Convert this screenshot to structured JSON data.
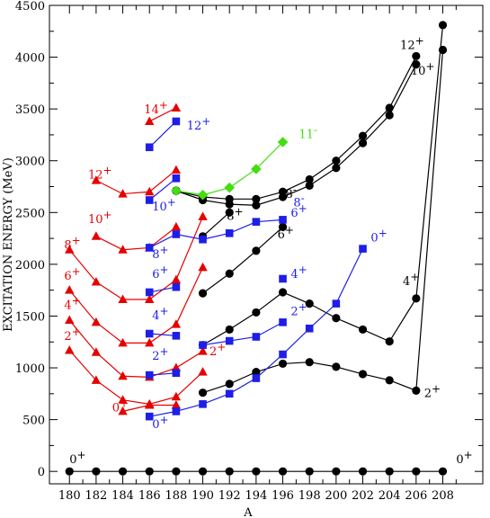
{
  "chart_data": {
    "type": "line",
    "xlabel": "A",
    "ylabel": "EXCITATION ENERGY (MeV)",
    "xlim": [
      178.5,
      211
    ],
    "ylim": [
      -120,
      4500
    ],
    "xticks": [
      180,
      182,
      184,
      186,
      188,
      190,
      192,
      194,
      196,
      198,
      200,
      202,
      204,
      206,
      208
    ],
    "yticks": [
      0,
      500,
      1000,
      1500,
      2000,
      2500,
      3000,
      3500,
      4000,
      4500
    ],
    "grid": false,
    "colors": {
      "black": "#000000",
      "red": "#e60000",
      "blue": "#1e1ee6",
      "green": "#44dd11"
    },
    "series": [
      {
        "color": "black",
        "marker": "circle",
        "x": [
          180,
          182,
          184,
          186,
          188,
          190,
          192,
          194,
          196,
          198,
          200,
          202,
          204,
          206,
          208
        ],
        "y": [
          0,
          0,
          0,
          0,
          0,
          0,
          0,
          0,
          0,
          0,
          0,
          0,
          0,
          0,
          0
        ]
      },
      {
        "color": "black",
        "marker": "circle",
        "x": [
          190,
          192,
          194,
          196,
          198,
          200,
          202,
          204,
          206,
          208
        ],
        "y": [
          760,
          845,
          960,
          1040,
          1055,
          1010,
          940,
          880,
          780,
          4070
        ]
      },
      {
        "color": "black",
        "marker": "circle",
        "x": [
          190,
          192,
          194,
          196,
          198,
          200,
          202,
          204,
          206,
          208
        ],
        "y": [
          1220,
          1370,
          1535,
          1730,
          1620,
          1480,
          1370,
          1255,
          1670,
          4310
        ]
      },
      {
        "color": "black",
        "marker": "circle",
        "x": [
          190,
          192,
          194,
          196
        ],
        "y": [
          1720,
          1910,
          2130,
          2360
        ]
      },
      {
        "color": "black",
        "marker": "circle",
        "x": [
          190,
          192
        ],
        "y": [
          2270,
          2500
        ]
      },
      {
        "color": "black",
        "marker": "circle",
        "x": [
          188,
          190,
          192,
          194,
          196,
          198,
          200,
          202,
          204,
          206
        ],
        "y": [
          2710,
          2620,
          2580,
          2570,
          2650,
          2760,
          2930,
          3170,
          3440,
          3930
        ]
      },
      {
        "color": "black",
        "marker": "circle",
        "x": [
          188,
          190,
          192,
          194,
          196,
          198,
          200,
          202,
          204,
          206
        ],
        "y": [
          2710,
          2650,
          2630,
          2630,
          2700,
          2820,
          3000,
          3240,
          3510,
          4010
        ]
      },
      {
        "color": "red",
        "marker": "triangle",
        "x": [
          180,
          182,
          184,
          186,
          188,
          190
        ],
        "y": [
          1170,
          880,
          690,
          650,
          720,
          960
        ]
      },
      {
        "color": "red",
        "marker": "triangle",
        "x": [
          180,
          182,
          184,
          186,
          188,
          190
        ],
        "y": [
          1460,
          1150,
          920,
          910,
          1000,
          1160
        ]
      },
      {
        "color": "red",
        "marker": "triangle",
        "x": [
          180,
          182,
          184,
          186,
          188,
          190
        ],
        "y": [
          1750,
          1440,
          1240,
          1240,
          1420,
          1970
        ]
      },
      {
        "color": "red",
        "marker": "triangle",
        "x": [
          180,
          182,
          184,
          186,
          188,
          190
        ],
        "y": [
          2140,
          1830,
          1660,
          1660,
          1850,
          2460
        ]
      },
      {
        "color": "red",
        "marker": "triangle",
        "x": [
          182,
          184,
          186,
          188
        ],
        "y": [
          2270,
          2140,
          2160,
          2360
        ]
      },
      {
        "color": "red",
        "marker": "triangle",
        "x": [
          182,
          184,
          186,
          188
        ],
        "y": [
          2810,
          2680,
          2700,
          2910
        ]
      },
      {
        "color": "red",
        "marker": "triangle",
        "x": [
          186,
          188
        ],
        "y": [
          3380,
          3510
        ]
      },
      {
        "color": "red",
        "marker": "triangle",
        "x": [
          184,
          186,
          188
        ],
        "y": [
          580,
          640,
          640
        ]
      },
      {
        "color": "blue",
        "marker": "square",
        "x": [
          186,
          188,
          190,
          192,
          194,
          196,
          198,
          200,
          202
        ],
        "y": [
          530,
          580,
          650,
          750,
          900,
          1130,
          1380,
          1620,
          2150
        ]
      },
      {
        "color": "blue",
        "marker": "square",
        "x": [
          186,
          188
        ],
        "y": [
          930,
          950
        ]
      },
      {
        "color": "blue",
        "marker": "square",
        "x": [
          186,
          188
        ],
        "y": [
          1330,
          1310
        ]
      },
      {
        "color": "blue",
        "marker": "square",
        "x": [
          186,
          188
        ],
        "y": [
          1730,
          1780
        ]
      },
      {
        "color": "blue",
        "marker": "square",
        "x": [
          186,
          188,
          190,
          192,
          194,
          196
        ],
        "y": [
          2160,
          2290,
          2240,
          2300,
          2410,
          2430
        ]
      },
      {
        "color": "blue",
        "marker": "square",
        "x": [
          186,
          188
        ],
        "y": [
          2620,
          2830
        ]
      },
      {
        "color": "blue",
        "marker": "square",
        "x": [
          186,
          188
        ],
        "y": [
          3130,
          3380
        ]
      },
      {
        "color": "blue",
        "marker": "square",
        "x": [
          190,
          192,
          194,
          196
        ],
        "y": [
          1220,
          1260,
          1300,
          1440
        ]
      },
      {
        "color": "blue",
        "marker": "square",
        "x": [
          196
        ],
        "y": [
          1860
        ]
      },
      {
        "color": "green",
        "marker": "diamond",
        "x": [
          188,
          190,
          192,
          194,
          196
        ],
        "y": [
          2710,
          2670,
          2740,
          2920,
          3180
        ]
      }
    ],
    "annotations": [
      {
        "text": "0+",
        "color": "black",
        "x": 180,
        "y": 80
      },
      {
        "text": "0+",
        "color": "black",
        "x": 209,
        "y": 80
      },
      {
        "text": "2+",
        "color": "black",
        "x": 206.6,
        "y": 720
      },
      {
        "text": "4+",
        "color": "black",
        "x": 205,
        "y": 1800
      },
      {
        "text": "6+",
        "color": "black",
        "x": 195.6,
        "y": 2250
      },
      {
        "text": "8+",
        "color": "black",
        "x": 191.8,
        "y": 2430
      },
      {
        "text": "8-",
        "color": "black",
        "x": 196.2,
        "y": 2640
      },
      {
        "text": "10+",
        "color": "black",
        "x": 205.6,
        "y": 3830
      },
      {
        "text": "12+",
        "color": "black",
        "x": 204.8,
        "y": 4080
      },
      {
        "text": "0+",
        "color": "red",
        "x": 183.2,
        "y": 580
      },
      {
        "text": "2+",
        "color": "red",
        "x": 179.6,
        "y": 1270
      },
      {
        "text": "4+",
        "color": "red",
        "x": 179.6,
        "y": 1570
      },
      {
        "text": "6+",
        "color": "red",
        "x": 179.6,
        "y": 1850
      },
      {
        "text": "8+",
        "color": "red",
        "x": 179.6,
        "y": 2150
      },
      {
        "text": "10+",
        "color": "red",
        "x": 181.4,
        "y": 2400
      },
      {
        "text": "12+",
        "color": "red",
        "x": 181.4,
        "y": 2830
      },
      {
        "text": "14+",
        "color": "red",
        "x": 185.6,
        "y": 3460
      },
      {
        "text": "2+",
        "color": "red",
        "x": 190.5,
        "y": 1120
      },
      {
        "text": "0+",
        "color": "blue",
        "x": 186.2,
        "y": 420
      },
      {
        "text": "2+",
        "color": "blue",
        "x": 186.2,
        "y": 1080
      },
      {
        "text": "4+",
        "color": "blue",
        "x": 186.2,
        "y": 1470
      },
      {
        "text": "6+",
        "color": "blue",
        "x": 186.2,
        "y": 1870
      },
      {
        "text": "8+",
        "color": "blue",
        "x": 186.2,
        "y": 2060
      },
      {
        "text": "10+",
        "color": "blue",
        "x": 186.2,
        "y": 2520
      },
      {
        "text": "12+",
        "color": "blue",
        "x": 188.8,
        "y": 3300
      },
      {
        "text": "2+",
        "color": "blue",
        "x": 196.6,
        "y": 1510
      },
      {
        "text": "4+",
        "color": "blue",
        "x": 196.6,
        "y": 1870
      },
      {
        "text": "6+",
        "color": "blue",
        "x": 196.6,
        "y": 2460
      },
      {
        "text": "8-",
        "color": "blue",
        "x": 196.8,
        "y": 2560
      },
      {
        "text": "0+",
        "color": "blue",
        "x": 202.6,
        "y": 2220
      },
      {
        "text": "11-",
        "color": "green",
        "x": 197.2,
        "y": 3220
      }
    ]
  }
}
